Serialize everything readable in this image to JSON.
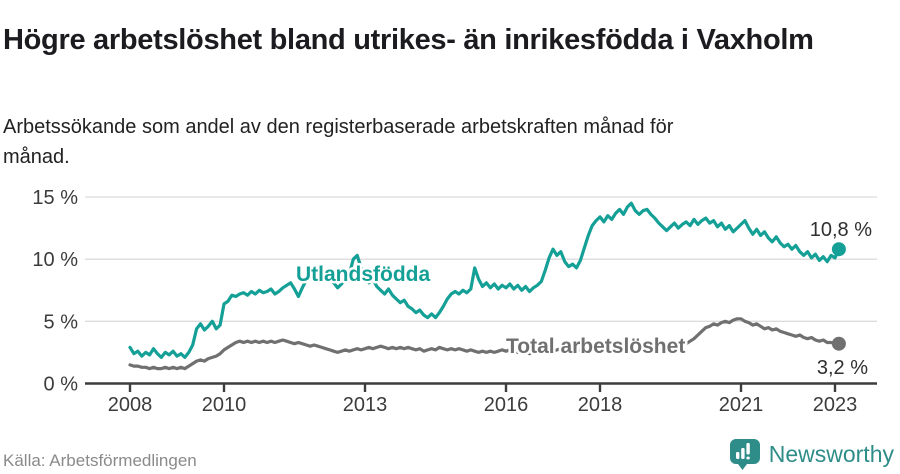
{
  "header": {
    "title": "Högre arbetslöshet bland utrikes- än inrikesfödda i Vaxholm",
    "subtitle": "Arbetssökande som andel av den registerbaserade arbetskraften månad för månad."
  },
  "footer": {
    "source": "Källa: Arbetsförmedlingen",
    "brand": "Newsworthy"
  },
  "colors": {
    "utlandsfodda": "#14A096",
    "total": "#707070",
    "grid": "#dcdcdc",
    "axis": "#3d3d3d",
    "brand_teal": "#2E8D88"
  },
  "chart_data": {
    "type": "line",
    "x_start": "2008-01",
    "x_end": "2023-02",
    "ylim": [
      0,
      15
    ],
    "grid": "horizontal",
    "y_ticks": [
      {
        "label": "0 %",
        "value": 0
      },
      {
        "label": "5 %",
        "value": 5
      },
      {
        "label": "10 %",
        "value": 10
      },
      {
        "label": "15 %",
        "value": 15
      }
    ],
    "x_ticks": [
      {
        "label": "2008",
        "year": 2008
      },
      {
        "label": "2010",
        "year": 2010
      },
      {
        "label": "2013",
        "year": 2013
      },
      {
        "label": "2016",
        "year": 2016
      },
      {
        "label": "2018",
        "year": 2018
      },
      {
        "label": "2021",
        "year": 2021
      },
      {
        "label": "2023",
        "year": 2023
      }
    ],
    "series": [
      {
        "name": "Utlandsfödda",
        "color": "#14A096",
        "end_label": "10,8 %",
        "end_value": 10.8,
        "values": [
          2.9,
          2.4,
          2.6,
          2.2,
          2.5,
          2.3,
          2.8,
          2.4,
          2.1,
          2.5,
          2.3,
          2.6,
          2.2,
          2.4,
          2.1,
          2.5,
          3.1,
          4.4,
          4.8,
          4.3,
          4.6,
          5.0,
          4.4,
          4.7,
          6.4,
          6.6,
          7.1,
          7.0,
          7.2,
          7.3,
          7.1,
          7.4,
          7.2,
          7.5,
          7.3,
          7.4,
          7.6,
          7.2,
          7.4,
          7.7,
          7.9,
          8.1,
          7.6,
          7.0,
          7.7,
          8.3,
          8.6,
          8.4,
          8.2,
          8.5,
          8.3,
          8.6,
          8.1,
          7.7,
          8.0,
          8.4,
          8.8,
          10.0,
          10.3,
          9.3,
          8.7,
          8.1,
          8.4,
          7.8,
          7.5,
          7.2,
          7.6,
          7.1,
          6.8,
          6.5,
          6.7,
          6.2,
          6.0,
          5.7,
          5.9,
          5.5,
          5.3,
          5.6,
          5.3,
          5.7,
          6.2,
          6.8,
          7.2,
          7.4,
          7.2,
          7.5,
          7.3,
          7.6,
          9.3,
          8.4,
          7.8,
          8.1,
          7.7,
          8.0,
          7.6,
          7.9,
          7.7,
          8.0,
          7.6,
          7.9,
          7.5,
          7.8,
          7.4,
          7.7,
          7.9,
          8.2,
          9.1,
          10.1,
          10.8,
          10.3,
          10.6,
          9.8,
          9.4,
          9.6,
          9.3,
          9.9,
          10.9,
          11.9,
          12.7,
          13.1,
          13.4,
          13.0,
          13.5,
          13.2,
          13.7,
          14.0,
          13.6,
          14.2,
          14.5,
          13.9,
          13.6,
          13.9,
          14.0,
          13.6,
          13.3,
          12.9,
          12.6,
          12.3,
          12.6,
          12.9,
          12.5,
          12.8,
          13.0,
          12.7,
          13.2,
          12.8,
          13.1,
          13.3,
          12.9,
          13.1,
          12.6,
          12.9,
          12.4,
          12.7,
          12.2,
          12.5,
          12.8,
          13.1,
          12.5,
          12.0,
          12.4,
          11.9,
          12.2,
          11.7,
          11.4,
          11.8,
          11.3,
          11.0,
          11.2,
          10.8,
          11.1,
          10.6,
          10.3,
          10.6,
          10.1,
          10.4,
          9.9,
          10.2,
          9.8,
          10.3,
          10.1,
          10.8
        ]
      },
      {
        "name": "Total arbetslöshet",
        "color": "#707070",
        "end_label": "3,2 %",
        "end_value": 3.2,
        "values": [
          1.5,
          1.4,
          1.4,
          1.3,
          1.3,
          1.2,
          1.3,
          1.2,
          1.2,
          1.3,
          1.2,
          1.3,
          1.2,
          1.3,
          1.2,
          1.4,
          1.6,
          1.8,
          1.9,
          1.8,
          2.0,
          2.1,
          2.2,
          2.4,
          2.7,
          2.9,
          3.1,
          3.3,
          3.4,
          3.3,
          3.4,
          3.3,
          3.4,
          3.3,
          3.4,
          3.3,
          3.4,
          3.3,
          3.4,
          3.5,
          3.4,
          3.3,
          3.2,
          3.3,
          3.2,
          3.1,
          3.0,
          3.1,
          3.0,
          2.9,
          2.8,
          2.7,
          2.6,
          2.5,
          2.6,
          2.7,
          2.6,
          2.7,
          2.8,
          2.7,
          2.8,
          2.9,
          2.8,
          2.9,
          3.0,
          2.9,
          2.8,
          2.9,
          2.8,
          2.9,
          2.8,
          2.9,
          2.8,
          2.7,
          2.8,
          2.6,
          2.7,
          2.8,
          2.7,
          2.9,
          2.8,
          2.7,
          2.8,
          2.7,
          2.8,
          2.7,
          2.6,
          2.7,
          2.6,
          2.5,
          2.6,
          2.5,
          2.6,
          2.5,
          2.6,
          2.7,
          2.6,
          2.7,
          2.6,
          2.5,
          2.6,
          2.5,
          2.4,
          2.5,
          2.6,
          2.5,
          2.6,
          2.7,
          2.6,
          2.7,
          2.8,
          2.7,
          2.8,
          2.7,
          2.6,
          2.7,
          2.8,
          2.7,
          2.8,
          2.9,
          2.8,
          2.7,
          2.8,
          2.7,
          2.6,
          2.7,
          2.8,
          2.7,
          2.8,
          2.7,
          2.8,
          2.9,
          2.8,
          2.9,
          2.8,
          2.9,
          3.0,
          2.9,
          3.0,
          3.1,
          3.0,
          3.1,
          3.2,
          3.4,
          3.6,
          3.9,
          4.2,
          4.5,
          4.6,
          4.8,
          4.7,
          4.9,
          5.0,
          4.9,
          5.1,
          5.2,
          5.2,
          5.0,
          4.9,
          4.7,
          4.8,
          4.6,
          4.4,
          4.5,
          4.3,
          4.4,
          4.2,
          4.1,
          4.0,
          3.9,
          3.8,
          3.9,
          3.7,
          3.6,
          3.7,
          3.5,
          3.4,
          3.5,
          3.3,
          3.3,
          3.2,
          3.2
        ]
      }
    ]
  }
}
